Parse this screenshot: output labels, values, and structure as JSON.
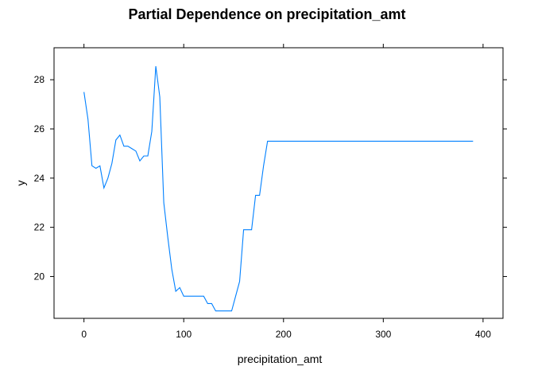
{
  "chart_data": {
    "type": "line",
    "title": "Partial Dependence on precipitation_amt",
    "xlabel": "precipitation_amt",
    "ylabel": "y",
    "xlim": [
      -30,
      420
    ],
    "ylim": [
      18.3,
      29.3
    ],
    "x_ticks": [
      0,
      100,
      200,
      300,
      400
    ],
    "y_ticks": [
      20,
      22,
      24,
      26,
      28
    ],
    "grid": false,
    "series_color": "#0080ff",
    "series": [
      {
        "x": [
          0,
          4,
          8,
          12,
          16,
          20,
          24,
          28,
          32,
          36,
          40,
          44,
          48,
          52,
          56,
          60,
          64,
          68,
          72,
          76,
          80,
          84,
          88,
          92,
          96,
          100,
          104,
          108,
          112,
          116,
          120,
          124,
          128,
          132,
          136,
          140,
          144,
          148,
          152,
          156,
          160,
          164,
          168,
          172,
          176,
          180,
          184,
          188,
          200,
          250,
          300,
          350,
          390
        ],
        "y": [
          27.5,
          26.4,
          24.5,
          24.4,
          24.5,
          23.6,
          24.0,
          24.6,
          25.55,
          25.75,
          25.3,
          25.3,
          25.2,
          25.1,
          24.7,
          24.9,
          24.9,
          25.9,
          28.55,
          27.3,
          23.0,
          21.6,
          20.3,
          19.4,
          19.55,
          19.2,
          19.2,
          19.2,
          19.2,
          19.2,
          19.2,
          18.9,
          18.9,
          18.6,
          18.6,
          18.6,
          18.6,
          18.6,
          19.2,
          19.8,
          21.9,
          21.9,
          21.9,
          23.3,
          23.3,
          24.5,
          25.5,
          25.5,
          25.5,
          25.5,
          25.5,
          25.5,
          25.5
        ]
      }
    ]
  }
}
